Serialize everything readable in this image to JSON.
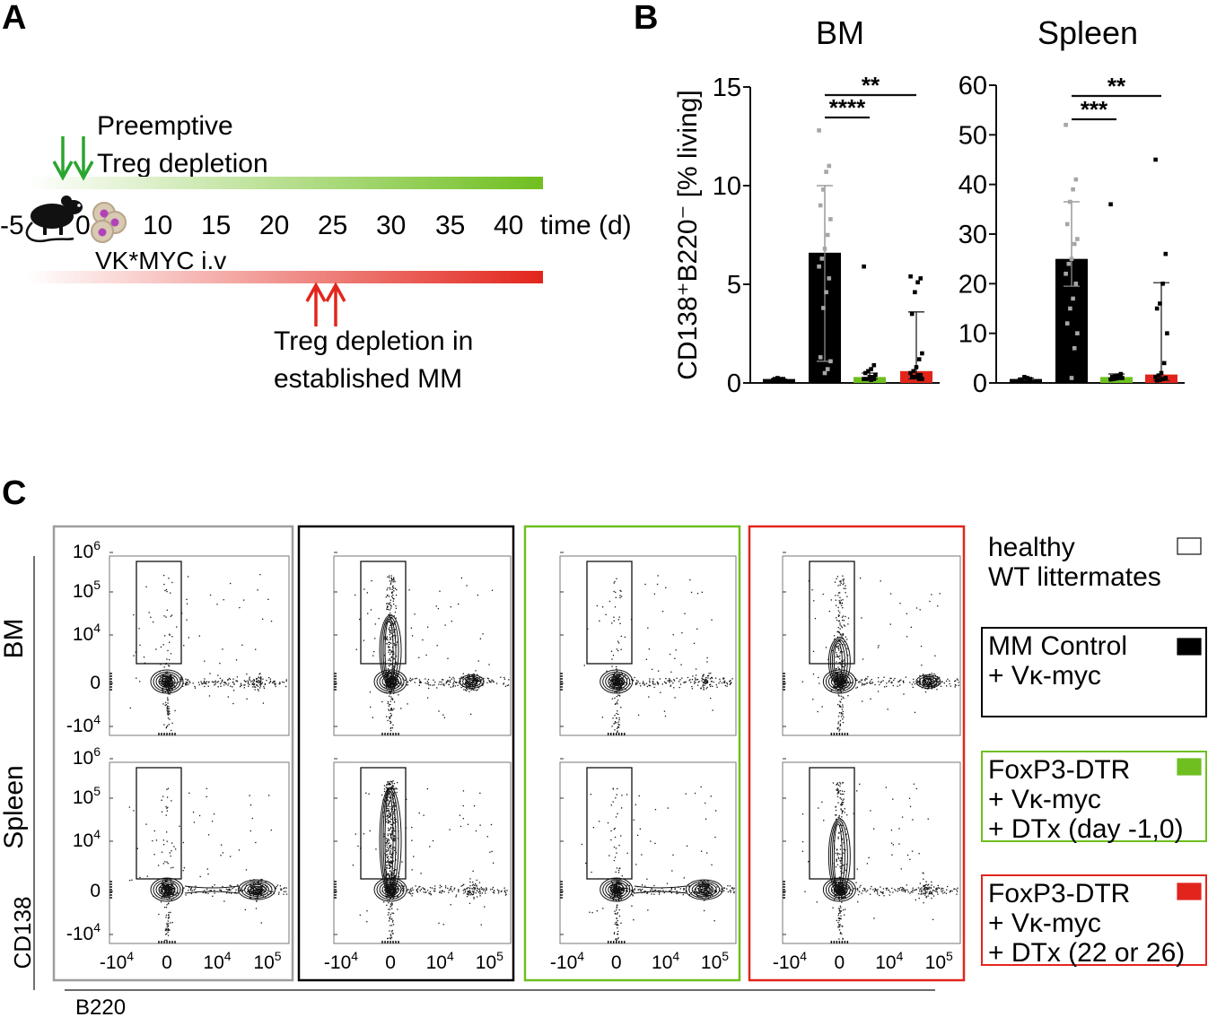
{
  "panel_labels": {
    "a": "A",
    "b": "B",
    "c": "C"
  },
  "colors": {
    "healthy": "#ffffff",
    "control": "#000000",
    "preemptive": "#6fbf20",
    "established": "#e2251c",
    "frame_gray": "#9d9d9d",
    "dot_gray": "#a6a6a6"
  },
  "timeline": {
    "preemptive_label_1": "Preemptive",
    "preemptive_label_2": "Treg depletion",
    "axis_ticks": [
      "-5",
      "0",
      "10",
      "15",
      "20",
      "25",
      "30",
      "35",
      "40"
    ],
    "time_label": "time (d)",
    "injection_label": "VK*MYC i.v",
    "established_label_1": "Treg depletion in",
    "established_label_2": "established MM",
    "icons": [
      "mouse-icon",
      "cells-icon",
      "green-arrow-icon",
      "red-arrow-icon"
    ]
  },
  "chart_data": [
    {
      "type": "bar",
      "title": "BM",
      "ylabel": "CD138⁺B220⁻ [% living]",
      "ylim": [
        0,
        15
      ],
      "yticks": [
        "0",
        "5",
        "10",
        "15"
      ],
      "categories": [
        "healthy WT littermates",
        "MM Control + Vκ-myc",
        "FoxP3-DTR + Vκ-myc + DTx (day -1,0)",
        "FoxP3-DTR + Vκ-myc + DTx (22 or 26)"
      ],
      "values": [
        0.2,
        6.6,
        0.3,
        0.6
      ],
      "error_upper": [
        0.2,
        10.0,
        0.5,
        3.6
      ],
      "error_lower": [
        0.2,
        1.1,
        0.2,
        0.2
      ],
      "points": [
        [
          0.15,
          0.2,
          0.2,
          0.25,
          0.2
        ],
        [
          12.8,
          11.0,
          10.7,
          9.8,
          9.0,
          8.3,
          7.5,
          6.8,
          6.3,
          5.9,
          5.3,
          4.6,
          3.8,
          1.3,
          1.1,
          0.7,
          0.5
        ],
        [
          5.9,
          0.9,
          0.7,
          0.6,
          0.5,
          0.4,
          0.3,
          0.3,
          0.2,
          0.2,
          0.2,
          0.15
        ],
        [
          5.4,
          5.3,
          5.1,
          4.6,
          3.5,
          1.5,
          1.2,
          0.8,
          0.6,
          0.5,
          0.4,
          0.4,
          0.3,
          0.3,
          0.2,
          0.2
        ]
      ],
      "significance": [
        {
          "from": 1,
          "to": 2,
          "label": "****"
        },
        {
          "from": 1,
          "to": 3,
          "label": "**"
        }
      ]
    },
    {
      "type": "bar",
      "title": "Spleen",
      "ylim": [
        0,
        60
      ],
      "yticks": [
        "0",
        "10",
        "20",
        "30",
        "40",
        "50",
        "60"
      ],
      "categories": [
        "healthy WT littermates",
        "MM Control + Vκ-myc",
        "FoxP3-DTR + Vκ-myc + DTx (day -1,0)",
        "FoxP3-DTR + Vκ-myc + DTx (22 or 26)"
      ],
      "values": [
        0.8,
        25.0,
        1.2,
        1.7
      ],
      "error_upper": [
        1.0,
        36.5,
        1.8,
        20.2
      ],
      "error_lower": [
        0.6,
        19.5,
        0.8,
        0.5
      ],
      "points": [
        [
          0.5,
          0.8,
          1.0,
          1.2,
          0.7
        ],
        [
          52.0,
          41.0,
          39.0,
          36.5,
          32.0,
          29.0,
          28.0,
          25.0,
          24.0,
          22.0,
          20.0,
          17.0,
          15.0,
          12.0,
          10.0,
          7.0,
          1.0
        ],
        [
          36.0,
          1.8,
          1.5,
          1.3,
          1.2,
          1.0,
          1.0,
          0.9,
          0.8,
          0.7
        ],
        [
          45.0,
          26.0,
          20.0,
          16.0,
          15.0,
          10.0,
          4.0,
          2.0,
          1.5,
          1.2,
          1.0,
          0.8,
          0.6,
          0.5
        ]
      ],
      "significance": [
        {
          "from": 1,
          "to": 2,
          "label": "***"
        },
        {
          "from": 1,
          "to": 3,
          "label": "**"
        }
      ]
    }
  ],
  "flow": {
    "row_labels": [
      "BM",
      "Spleen"
    ],
    "y_axis_label": "CD138",
    "x_axis_label": "B220",
    "y_ticks": [
      {
        "base": "10",
        "exp": "6"
      },
      {
        "base": "10",
        "exp": "5"
      },
      {
        "base": "10",
        "exp": "4"
      },
      {
        "base": "0",
        "exp": ""
      },
      {
        "base": "-10",
        "exp": "4"
      }
    ],
    "x_ticks": [
      {
        "base": "-10",
        "exp": "4"
      },
      {
        "base": "0",
        "exp": ""
      },
      {
        "base": "10",
        "exp": "4"
      },
      {
        "base": "10",
        "exp": "5"
      }
    ]
  },
  "legend": [
    {
      "lines": [
        "healthy",
        "WT littermates"
      ],
      "color": "#ffffff",
      "border": "none"
    },
    {
      "lines": [
        "MM Control",
        "+ Vκ-myc"
      ],
      "color": "#000000",
      "border": "#000000"
    },
    {
      "lines": [
        "FoxP3-DTR",
        "+ Vκ-myc",
        "+ DTx (day -1,0)"
      ],
      "color": "#6fbf20",
      "border": "#6fbf20"
    },
    {
      "lines": [
        "FoxP3-DTR",
        "+ Vκ-myc",
        "+ DTx (22 or 26)"
      ],
      "color": "#e2251c",
      "border": "#e2251c"
    }
  ]
}
